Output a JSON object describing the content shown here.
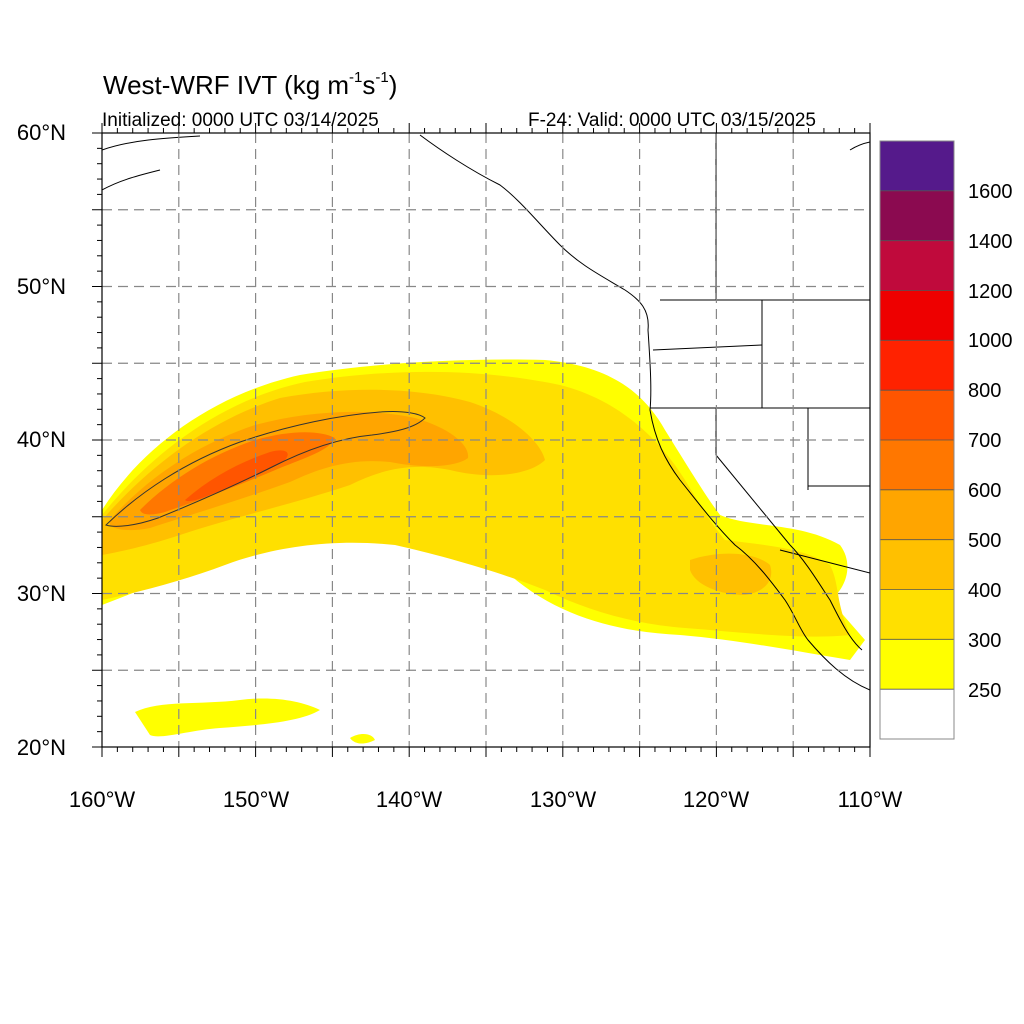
{
  "map": {
    "title_prefix": "West-WRF IVT (kg m",
    "title_exp1": "-1",
    "title_mid": "s",
    "title_exp2": "-1",
    "title_suffix": ")",
    "initialized": "Initialized: 0000 UTC 03/14/2025",
    "valid": "F-24: Valid: 0000 UTC 03/15/2025",
    "lat_labels": [
      "60°N",
      "50°N",
      "40°N",
      "30°N",
      "20°N"
    ],
    "lon_labels": [
      "160°W",
      "150°W",
      "140°W",
      "130°W",
      "120°W",
      "110°W"
    ],
    "extent": {
      "lon_min": -160,
      "lon_max": -110,
      "lat_min": 20,
      "lat_max": 60
    },
    "grid_lines": "dashed, every 5 degrees",
    "land": "outline only (coastlines, state and national borders)"
  },
  "colorbar": {
    "labels": [
      "1600",
      "1400",
      "1200",
      "1000",
      "800",
      "700",
      "600",
      "500",
      "400",
      "300",
      "250"
    ],
    "colors": [
      "#551a8b",
      "#8b0a50",
      "#c00a3c",
      "#ee0000",
      "#ff2200",
      "#ff5500",
      "#ff7700",
      "#ffa500",
      "#ffc000",
      "#ffe000",
      "#ffff00",
      "#ffffff"
    ]
  }
}
